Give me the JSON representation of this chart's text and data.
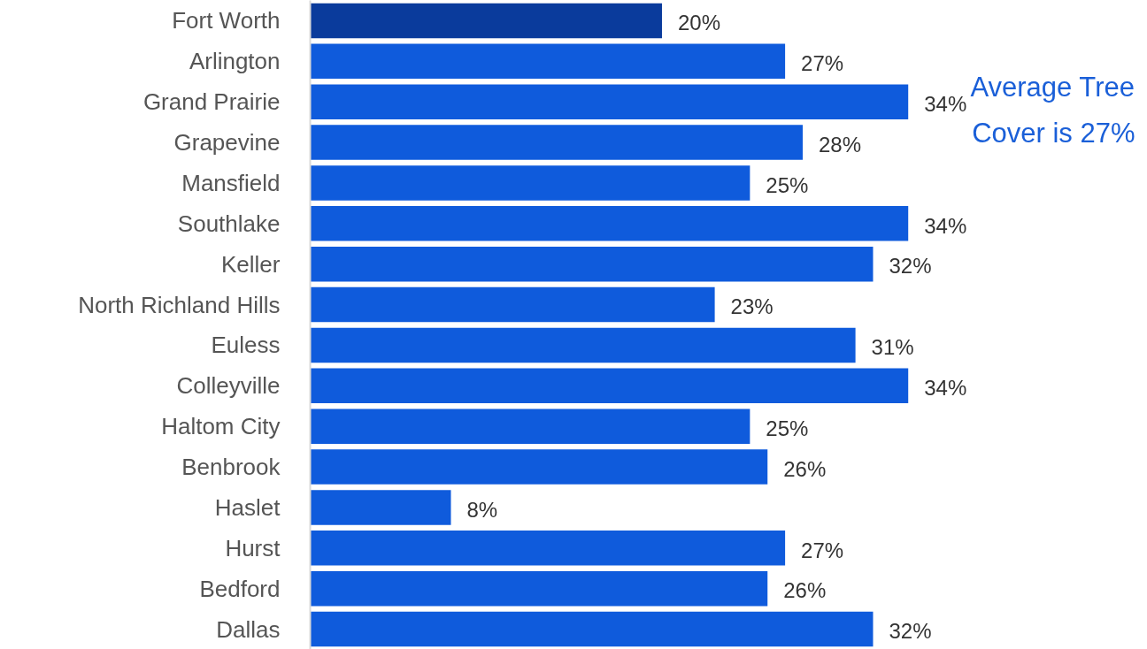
{
  "chart_data": {
    "type": "bar",
    "orientation": "horizontal",
    "categories": [
      "Fort Worth",
      "Arlington",
      "Grand Prairie",
      "Grapevine",
      "Mansfield",
      "Southlake",
      "Keller",
      "North Richland Hills",
      "Euless",
      "Colleyville",
      "Haltom City",
      "Benbrook",
      "Haslet",
      "Hurst",
      "Bedford",
      "Dallas"
    ],
    "values": [
      20,
      27,
      34,
      28,
      25,
      34,
      32,
      23,
      31,
      34,
      25,
      26,
      8,
      27,
      26,
      32
    ],
    "value_labels": [
      "20%",
      "27%",
      "34%",
      "28%",
      "25%",
      "34%",
      "32%",
      "23%",
      "31%",
      "34%",
      "25%",
      "26%",
      "8%",
      "27%",
      "26%",
      "32%"
    ],
    "colors": [
      "#0a3b9c",
      "#0f5bdc",
      "#0f5bdc",
      "#0f5bdc",
      "#0f5bdc",
      "#0f5bdc",
      "#0f5bdc",
      "#0f5bdc",
      "#0f5bdc",
      "#0f5bdc",
      "#0f5bdc",
      "#0f5bdc",
      "#0f5bdc",
      "#0f5bdc",
      "#0f5bdc",
      "#0f5bdc"
    ],
    "tick_labels": "y",
    "grid": false,
    "annotations": [
      "Average Tree Cover is 27%"
    ]
  }
}
